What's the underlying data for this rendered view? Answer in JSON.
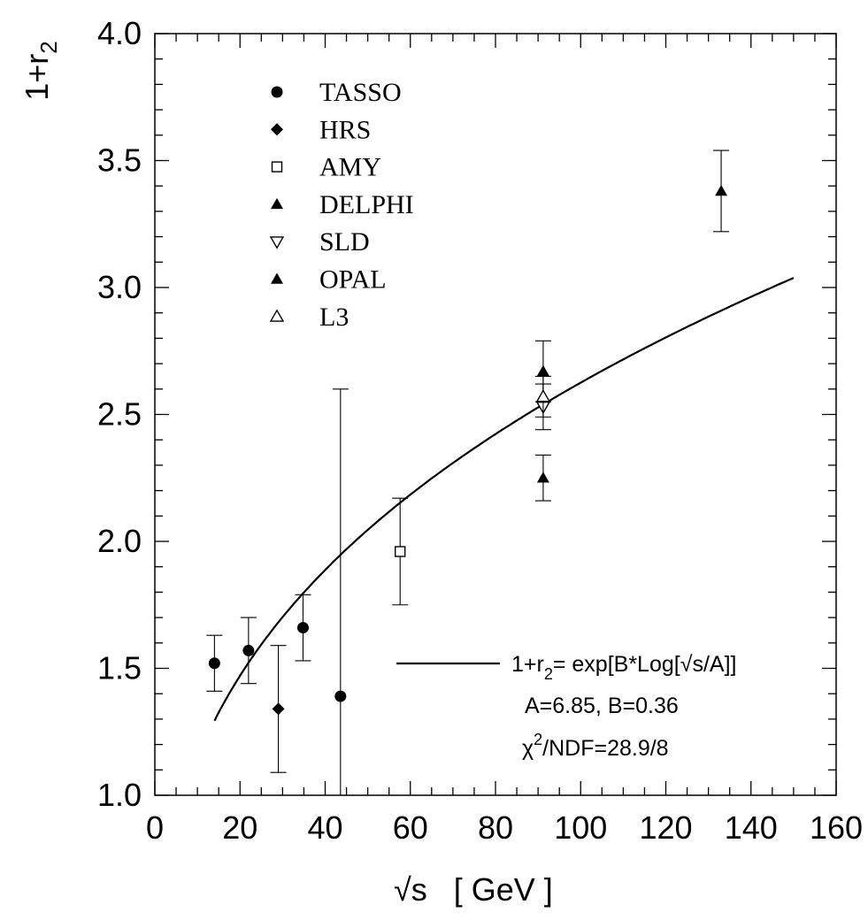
{
  "chart_data": {
    "type": "scatter",
    "xlabel_prefix": "√",
    "xlabel_var": "s",
    "xlabel_unit": "[ GeV ]",
    "ylabel_main": "1+r",
    "ylabel_sub": "2",
    "xlim": [
      0,
      160
    ],
    "ylim": [
      1.0,
      4.0
    ],
    "x_ticks": [
      0,
      20,
      40,
      60,
      80,
      100,
      120,
      140,
      160
    ],
    "x_tick_labels": [
      "0",
      "20",
      "40",
      "60",
      "80",
      "100",
      "120",
      "140",
      "160"
    ],
    "y_ticks": [
      1.0,
      1.5,
      2.0,
      2.5,
      3.0,
      3.5,
      4.0
    ],
    "y_tick_labels": [
      "1.0",
      "1.5",
      "2.0",
      "2.5",
      "3.0",
      "3.5",
      "4.0"
    ],
    "legend_position": "top-left",
    "series": [
      {
        "name": "TASSO",
        "marker": "filled-circle",
        "points": [
          {
            "x": 14,
            "y": 1.52,
            "err": 0.11
          },
          {
            "x": 22,
            "y": 1.57,
            "err": 0.13
          },
          {
            "x": 34.8,
            "y": 1.66,
            "err": 0.13
          },
          {
            "x": 43.6,
            "y": 1.39,
            "err": 1.21
          }
        ]
      },
      {
        "name": "HRS",
        "marker": "filled-diamond",
        "points": [
          {
            "x": 29,
            "y": 1.34,
            "err": 0.25
          }
        ]
      },
      {
        "name": "AMY",
        "marker": "open-square",
        "points": [
          {
            "x": 57.6,
            "y": 1.96,
            "err": 0.21
          }
        ]
      },
      {
        "name": "DELPHI",
        "marker": "filled-triangle",
        "points": [
          {
            "x": 91.2,
            "y": 2.67,
            "err": 0.12
          }
        ]
      },
      {
        "name": "SLD",
        "marker": "open-triangle-down",
        "points": [
          {
            "x": 91.2,
            "y": 2.53,
            "err": 0.09
          }
        ]
      },
      {
        "name": "OPAL",
        "marker": "filled-triangle",
        "points": [
          {
            "x": 91.2,
            "y": 2.25,
            "err": 0.09
          },
          {
            "x": 133,
            "y": 3.38,
            "err": 0.16
          }
        ]
      },
      {
        "name": "L3",
        "marker": "open-triangle",
        "points": [
          {
            "x": 91.2,
            "y": 2.57,
            "err": 0.08
          }
        ]
      }
    ],
    "fit": {
      "x_start": 14,
      "x_end": 150,
      "A": 6.85,
      "B": 0.36,
      "label_prefix": "1+r",
      "label_sub": "2",
      "label_formula_a": "= exp[B*Log[",
      "label_radical": "√",
      "label_formula_b": "s/A]]",
      "params_text": "A=6.85,  B=0.36",
      "chi_symbol": "χ",
      "chi_sup": "2",
      "chi_rest": "/NDF=28.9/8"
    }
  }
}
